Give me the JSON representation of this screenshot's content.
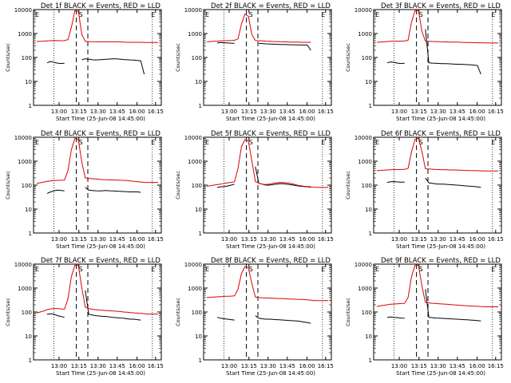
{
  "page": {
    "background": "#ffffff"
  },
  "colors": {
    "events": "#000000",
    "lld": "#dd0000",
    "axis": "#000000"
  },
  "common": {
    "ylabel": "Counts/sec",
    "xlabel": "Start Time (25-Jun-08 14:45:00)",
    "xticks": [
      "13:00",
      "13:15",
      "13:30",
      "13:45",
      "16:00",
      "16:15"
    ],
    "yticks": [
      "1",
      "10",
      "100",
      "1000",
      "10000"
    ],
    "marker_E": "E",
    "marker_S": "S"
  },
  "chart_data": [
    {
      "type": "line",
      "title": "Det 1f BLACK = Events, RED = LLD",
      "ylim": [
        1,
        10000
      ],
      "yscale": "log",
      "series": [
        {
          "name": "Events",
          "values": [
            0,
            0,
            0,
            60,
            68,
            62,
            58,
            56,
            57,
            0,
            0,
            0,
            0,
            80,
            88,
            85,
            80,
            79,
            80,
            82,
            84,
            86,
            88,
            87,
            85,
            82,
            80,
            79,
            78,
            75,
            72,
            20,
            0,
            0,
            0,
            0
          ]
        },
        {
          "name": "LLD",
          "values": [
            460,
            470,
            480,
            490,
            500,
            510,
            505,
            500,
            505,
            560,
            1800,
            9000,
            8500,
            900,
            470,
            460,
            455,
            450,
            450,
            450,
            450,
            450,
            450,
            450,
            450,
            440,
            430,
            430,
            430,
            430,
            430,
            420,
            420,
            420,
            420,
            420
          ]
        }
      ]
    },
    {
      "type": "line",
      "title": "Det 2f BLACK = Events, RED = LLD",
      "ylim": [
        1,
        10000
      ],
      "yscale": "log",
      "series": [
        {
          "name": "Events",
          "values": [
            0,
            0,
            0,
            400,
            420,
            410,
            400,
            395,
            390,
            0,
            0,
            0,
            0,
            0,
            0,
            390,
            380,
            370,
            365,
            360,
            355,
            350,
            350,
            345,
            340,
            340,
            335,
            330,
            330,
            330,
            200,
            0,
            0,
            0,
            0,
            0
          ]
        },
        {
          "name": "LLD",
          "values": [
            450,
            460,
            470,
            480,
            490,
            500,
            500,
            510,
            520,
            600,
            2500,
            6500,
            5200,
            900,
            510,
            500,
            490,
            480,
            470,
            465,
            460,
            455,
            450,
            445,
            440,
            440,
            435,
            430,
            430,
            430,
            430,
            0,
            0,
            0,
            0,
            0
          ]
        }
      ]
    },
    {
      "type": "line",
      "title": "Det 3f BLACK = Events, RED = LLD",
      "ylim": [
        1,
        10000
      ],
      "yscale": "log",
      "series": [
        {
          "name": "Events",
          "values": [
            0,
            0,
            0,
            60,
            65,
            62,
            58,
            56,
            57,
            0,
            0,
            0,
            0,
            0,
            1500,
            60,
            58,
            57,
            56,
            55,
            55,
            54,
            53,
            52,
            52,
            51,
            50,
            49,
            48,
            46,
            20,
            0,
            0,
            0,
            0,
            0
          ]
        },
        {
          "name": "LLD",
          "values": [
            430,
            440,
            450,
            460,
            470,
            480,
            480,
            480,
            490,
            520,
            3000,
            9000,
            9000,
            1200,
            480,
            470,
            465,
            460,
            455,
            450,
            445,
            440,
            440,
            435,
            430,
            425,
            420,
            420,
            415,
            410,
            410,
            410,
            400,
            400,
            400,
            400
          ]
        }
      ]
    },
    {
      "type": "line",
      "title": "Det 4f BLACK = Events, RED = LLD",
      "ylim": [
        1,
        10000
      ],
      "yscale": "log",
      "series": [
        {
          "name": "Events",
          "values": [
            0,
            0,
            0,
            45,
            52,
            58,
            62,
            60,
            58,
            0,
            0,
            0,
            0,
            0,
            80,
            62,
            60,
            58,
            57,
            58,
            60,
            58,
            57,
            56,
            55,
            54,
            53,
            52,
            52,
            52,
            50,
            0,
            0,
            0,
            0,
            0
          ]
        },
        {
          "name": "LLD",
          "values": [
            120,
            125,
            135,
            145,
            150,
            155,
            158,
            160,
            162,
            400,
            3000,
            9000,
            8000,
            900,
            200,
            190,
            185,
            180,
            175,
            170,
            168,
            165,
            165,
            162,
            160,
            158,
            155,
            150,
            145,
            140,
            135,
            130,
            130,
            130,
            130,
            130
          ]
        }
      ]
    },
    {
      "type": "line",
      "title": "Det 5f BLACK = Events, RED = LLD",
      "ylim": [
        1,
        10000
      ],
      "yscale": "log",
      "series": [
        {
          "name": "Events",
          "values": [
            0,
            0,
            0,
            80,
            85,
            88,
            92,
            100,
            110,
            0,
            0,
            0,
            0,
            0,
            600,
            120,
            110,
            100,
            100,
            105,
            110,
            115,
            115,
            110,
            105,
            100,
            95,
            90,
            88,
            85,
            82,
            0,
            0,
            0,
            0,
            0
          ]
        },
        {
          "name": "LLD",
          "values": [
            90,
            95,
            100,
            105,
            110,
            118,
            125,
            130,
            140,
            500,
            4000,
            8000,
            7000,
            1000,
            140,
            120,
            110,
            105,
            110,
            118,
            125,
            130,
            128,
            125,
            118,
            110,
            100,
            95,
            90,
            88,
            85,
            82,
            80,
            80,
            80,
            80
          ]
        }
      ]
    },
    {
      "type": "line",
      "title": "Det 6f BLACK = Events, RED = LLD",
      "ylim": [
        1,
        10000
      ],
      "yscale": "log",
      "series": [
        {
          "name": "Events",
          "values": [
            0,
            0,
            0,
            130,
            138,
            140,
            136,
            132,
            135,
            0,
            0,
            0,
            0,
            0,
            200,
            125,
            118,
            112,
            110,
            110,
            108,
            105,
            103,
            100,
            98,
            95,
            92,
            90,
            88,
            85,
            80,
            0,
            0,
            0,
            0,
            0
          ]
        },
        {
          "name": "LLD",
          "values": [
            400,
            410,
            420,
            430,
            440,
            445,
            448,
            450,
            455,
            500,
            2500,
            8000,
            9000,
            2500,
            480,
            470,
            460,
            450,
            445,
            440,
            435,
            430,
            430,
            425,
            420,
            415,
            410,
            405,
            400,
            400,
            395,
            390,
            390,
            390,
            390,
            390
          ]
        }
      ]
    },
    {
      "type": "line",
      "title": "Det 7f BLACK = Events, RED = LLD",
      "ylim": [
        1,
        10000
      ],
      "yscale": "log",
      "series": [
        {
          "name": "Events",
          "values": [
            0,
            0,
            0,
            80,
            85,
            80,
            70,
            65,
            60,
            0,
            0,
            0,
            0,
            0,
            800,
            80,
            75,
            70,
            68,
            66,
            65,
            62,
            60,
            58,
            56,
            55,
            52,
            50,
            50,
            48,
            46,
            0,
            0,
            0,
            0,
            0
          ]
        },
        {
          "name": "LLD",
          "values": [
            90,
            100,
            110,
            125,
            135,
            140,
            140,
            135,
            130,
            350,
            3000,
            9000,
            9000,
            1000,
            160,
            140,
            130,
            125,
            120,
            118,
            115,
            112,
            110,
            108,
            105,
            100,
            98,
            95,
            92,
            90,
            88,
            85,
            82,
            82,
            82,
            82
          ]
        }
      ]
    },
    {
      "type": "line",
      "title": "Det 8f BLACK = Events, RED = LLD",
      "ylim": [
        1,
        10000
      ],
      "yscale": "log",
      "series": [
        {
          "name": "Events",
          "values": [
            0,
            0,
            0,
            60,
            55,
            52,
            50,
            48,
            46,
            0,
            0,
            0,
            0,
            0,
            70,
            55,
            52,
            50,
            50,
            49,
            48,
            47,
            46,
            45,
            44,
            43,
            42,
            40,
            38,
            36,
            34,
            0,
            0,
            0,
            0,
            0
          ]
        },
        {
          "name": "LLD",
          "values": [
            400,
            410,
            420,
            430,
            440,
            450,
            455,
            460,
            470,
            900,
            4000,
            8000,
            7000,
            1500,
            420,
            400,
            390,
            385,
            380,
            375,
            370,
            365,
            360,
            355,
            350,
            345,
            340,
            335,
            330,
            320,
            310,
            300,
            300,
            300,
            300,
            300
          ]
        }
      ]
    },
    {
      "type": "line",
      "title": "Det 9f BLACK = Events, RED = LLD",
      "ylim": [
        1,
        10000
      ],
      "yscale": "log",
      "series": [
        {
          "name": "Events",
          "values": [
            0,
            0,
            0,
            60,
            62,
            60,
            58,
            56,
            55,
            0,
            0,
            0,
            0,
            0,
            900,
            60,
            58,
            56,
            55,
            54,
            53,
            52,
            51,
            50,
            49,
            48,
            47,
            46,
            45,
            44,
            42,
            0,
            0,
            0,
            0,
            0
          ]
        },
        {
          "name": "LLD",
          "values": [
            170,
            180,
            190,
            200,
            210,
            215,
            220,
            225,
            230,
            400,
            3000,
            9000,
            9000,
            1200,
            250,
            240,
            230,
            225,
            220,
            215,
            210,
            205,
            200,
            195,
            190,
            185,
            180,
            178,
            175,
            172,
            170,
            168,
            165,
            165,
            165,
            165
          ]
        }
      ]
    }
  ]
}
